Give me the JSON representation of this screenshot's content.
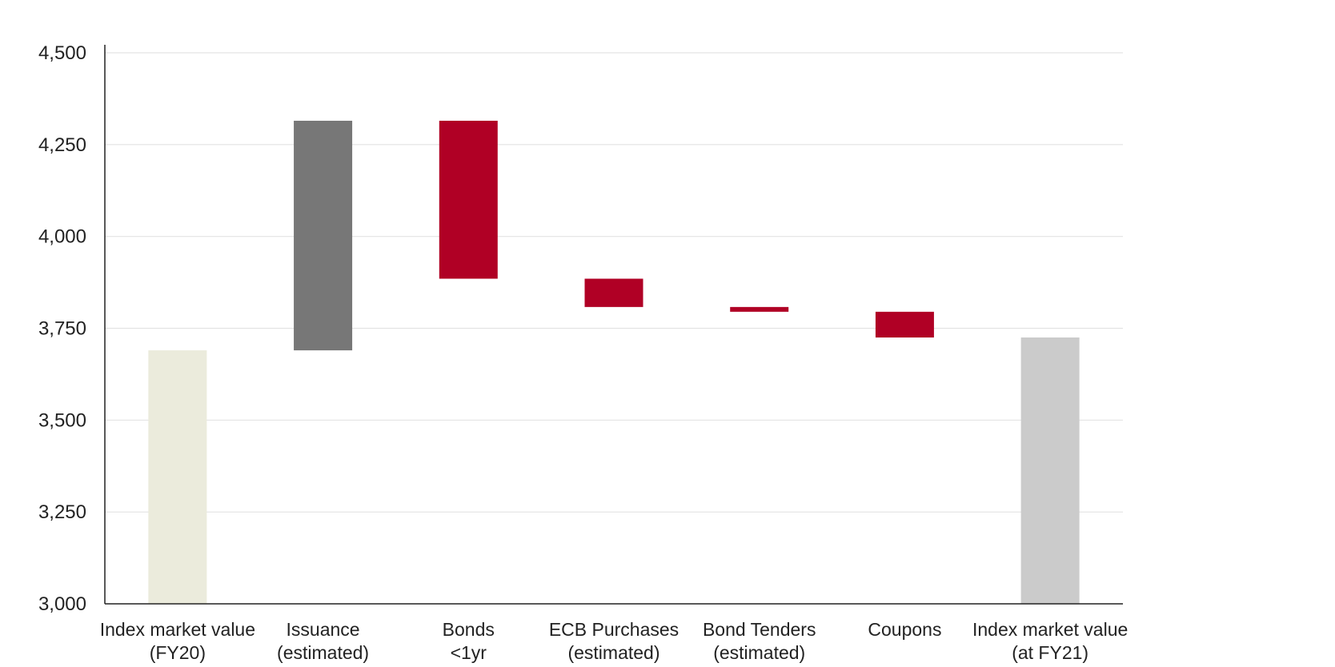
{
  "chart_data": {
    "type": "bar",
    "subtype": "waterfall",
    "title": "",
    "xlabel": "",
    "ylabel": "",
    "ylim": [
      3000,
      4500
    ],
    "yticks": [
      "3,000",
      "3,250",
      "3,500",
      "3,750",
      "4,000",
      "4,250",
      "4,500"
    ],
    "ytick_values": [
      3000,
      3250,
      3500,
      3750,
      4000,
      4250,
      4500
    ],
    "grid": true,
    "categories": [
      [
        "Index market value",
        "(FY20)"
      ],
      [
        "Issuance",
        "(estimated)"
      ],
      [
        "Bonds",
        "<1yr"
      ],
      [
        "ECB Purchases",
        "(estimated)"
      ],
      [
        "Bond Tenders",
        "(estimated)"
      ],
      [
        "Coupons",
        ""
      ],
      [
        "Index market value",
        "(at FY21)"
      ]
    ],
    "bars": [
      {
        "kind": "total",
        "start": 3000,
        "end": 3690,
        "color": "#ebebdc"
      },
      {
        "kind": "increase",
        "start": 3690,
        "end": 4315,
        "color": "#777777"
      },
      {
        "kind": "decrease",
        "start": 4315,
        "end": 3885,
        "color": "#b00025"
      },
      {
        "kind": "decrease",
        "start": 3885,
        "end": 3808,
        "color": "#b00025"
      },
      {
        "kind": "decrease",
        "start": 3808,
        "end": 3795,
        "color": "#b00025"
      },
      {
        "kind": "decrease",
        "start": 3795,
        "end": 3725,
        "color": "#b00025"
      },
      {
        "kind": "total",
        "start": 3000,
        "end": 3725,
        "color": "#cbcbcb"
      }
    ],
    "colors": {
      "axis": "#222222",
      "grid": "#e3e3e3"
    }
  }
}
